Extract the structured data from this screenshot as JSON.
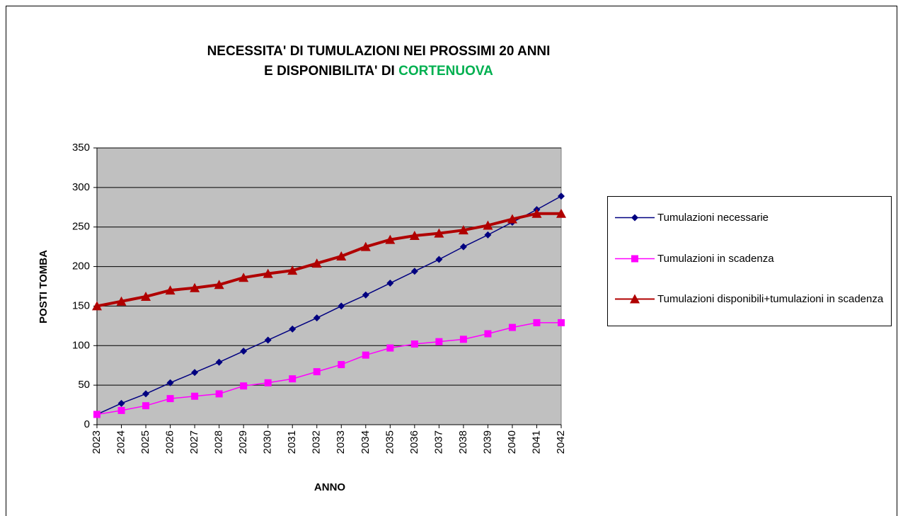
{
  "chart_data": {
    "type": "line",
    "title": [
      "NECESSITA' DI TUMULAZIONI NEI PROSSIMI 20 ANNI",
      "E DISPONIBILITA' DI",
      "CORTENUOVA"
    ],
    "title_highlight_color": "#00b050",
    "x_label": "ANNO",
    "y_label": "POSTI TOMBA",
    "categories": [
      "2023",
      "2024",
      "2025",
      "2026",
      "2027",
      "2028",
      "2029",
      "2030",
      "2031",
      "2032",
      "2033",
      "2034",
      "2035",
      "2036",
      "2037",
      "2038",
      "2039",
      "2040",
      "2041",
      "2042"
    ],
    "series": [
      {
        "name": "Tumulazioni necessarie",
        "color": "#000080",
        "marker": "diamond",
        "values": [
          13,
          27,
          39,
          53,
          66,
          79,
          93,
          107,
          121,
          135,
          150,
          164,
          179,
          194,
          209,
          225,
          240,
          256,
          272,
          289
        ]
      },
      {
        "name": "Tumulazioni in scadenza",
        "color": "#ff00ff",
        "marker": "square",
        "values": [
          13,
          18,
          24,
          33,
          36,
          39,
          49,
          53,
          58,
          67,
          76,
          88,
          97,
          102,
          105,
          108,
          115,
          123,
          129,
          129
        ]
      },
      {
        "name": "Tumulazioni disponibili+tumulazioni in scadenza",
        "color": "#b00000",
        "marker": "triangle",
        "values": [
          150,
          156,
          162,
          170,
          173,
          177,
          186,
          191,
          195,
          204,
          213,
          225,
          234,
          239,
          242,
          246,
          252,
          260,
          267,
          267
        ]
      }
    ],
    "ylim": [
      0,
      350
    ],
    "yticks": [
      0,
      50,
      100,
      150,
      200,
      250,
      300,
      350
    ],
    "grid": true,
    "plot_background": "#c0c0c0",
    "legend": "right"
  }
}
